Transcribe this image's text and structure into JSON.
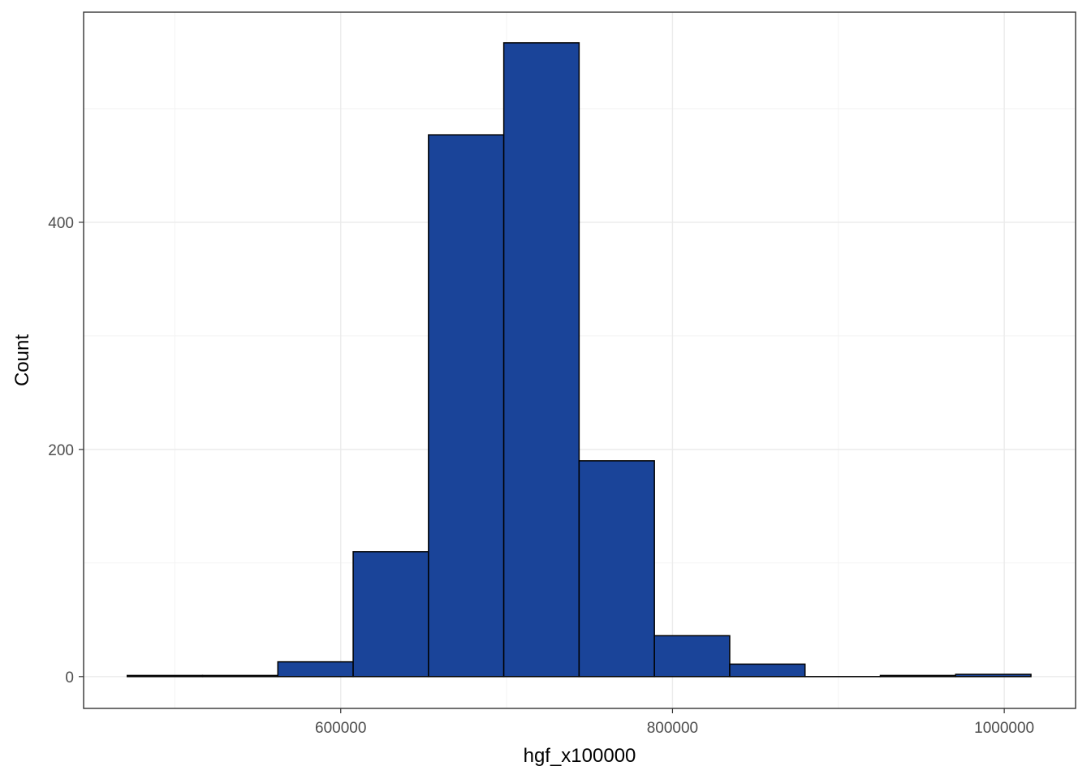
{
  "chart_data": {
    "type": "bar",
    "subtype": "histogram",
    "title": "",
    "xlabel": "hgf_x100000",
    "ylabel": "Count",
    "bins": [
      {
        "x0": 471300,
        "x1": 516700,
        "count": 1
      },
      {
        "x0": 516700,
        "x1": 562100,
        "count": 1
      },
      {
        "x0": 562100,
        "x1": 607500,
        "count": 13
      },
      {
        "x0": 607500,
        "x1": 652900,
        "count": 110
      },
      {
        "x0": 652900,
        "x1": 698300,
        "count": 477
      },
      {
        "x0": 698300,
        "x1": 743700,
        "count": 558
      },
      {
        "x0": 743700,
        "x1": 789100,
        "count": 190
      },
      {
        "x0": 789100,
        "x1": 834500,
        "count": 36
      },
      {
        "x0": 834500,
        "x1": 879900,
        "count": 11
      },
      {
        "x0": 879900,
        "x1": 925300,
        "count": 0
      },
      {
        "x0": 925300,
        "x1": 970700,
        "count": 1
      },
      {
        "x0": 970700,
        "x1": 1016100,
        "count": 2
      }
    ],
    "xlim": [
      445000,
      1043000
    ],
    "ylim": [
      -28,
      585
    ],
    "x_ticks": [
      600000,
      800000,
      1000000
    ],
    "x_tick_labels": [
      "600000",
      "800000",
      "1000000"
    ],
    "x_minor": [
      500000,
      700000,
      900000
    ],
    "y_ticks": [
      0,
      200,
      400
    ],
    "y_tick_labels": [
      "0",
      "200",
      "400"
    ],
    "y_minor": [
      100,
      300,
      500
    ],
    "grid": true,
    "legend": "none",
    "colors": {
      "fill": "#1A4499",
      "outline": "#000000"
    }
  }
}
